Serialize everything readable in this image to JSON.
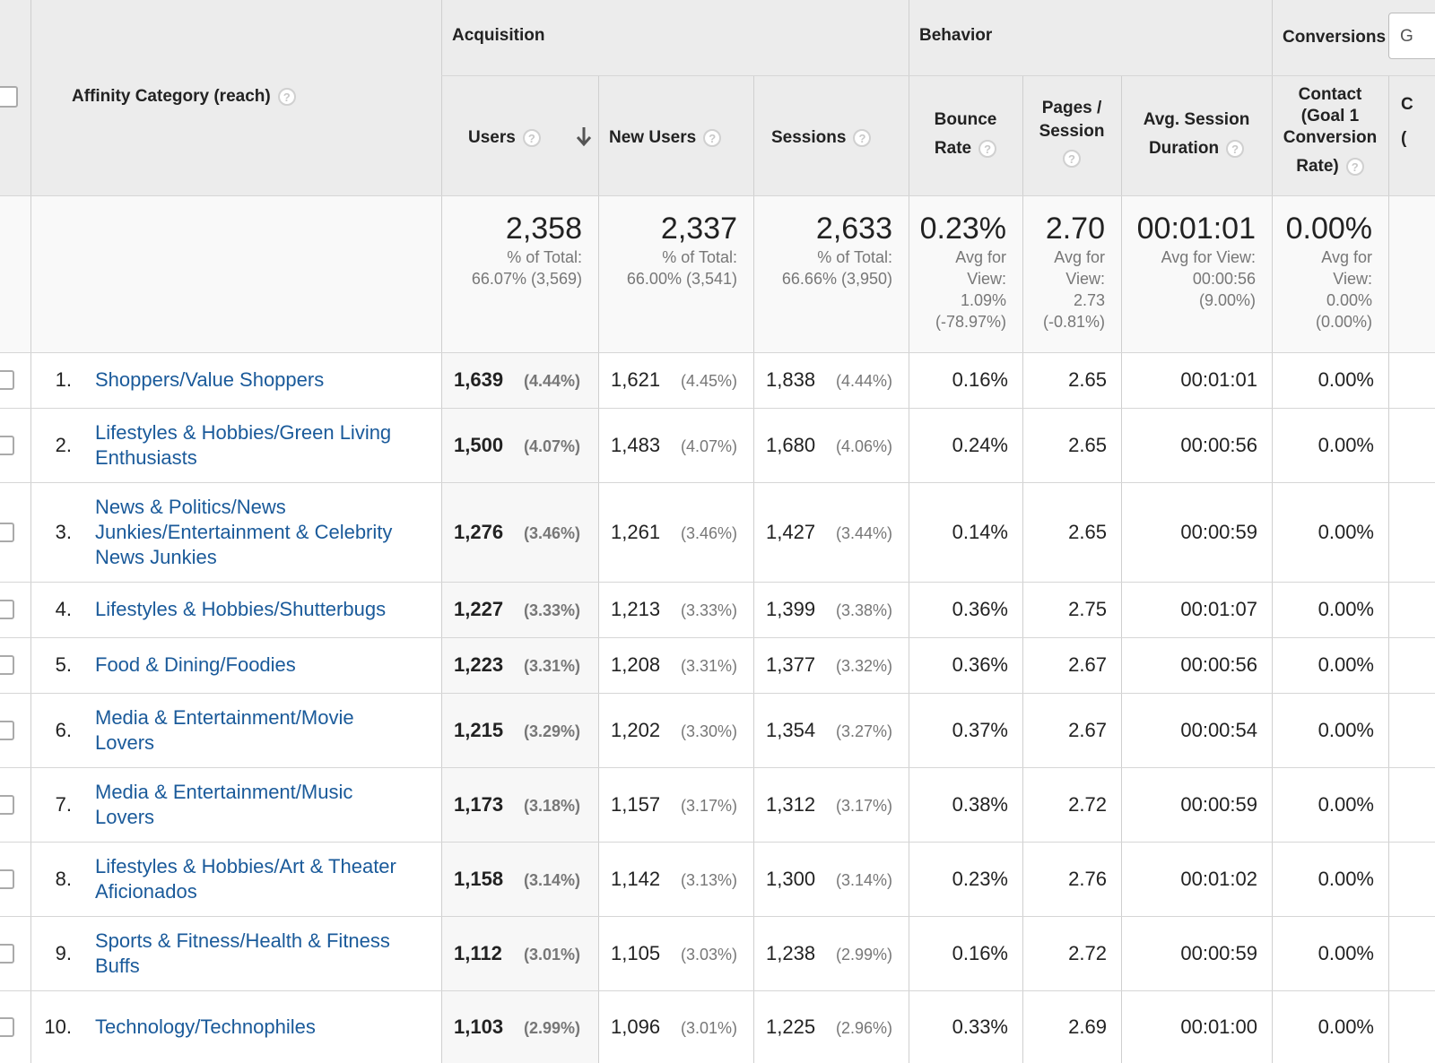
{
  "header": {
    "dimension": "Affinity Category (reach)",
    "groups": {
      "acquisition": "Acquisition",
      "behavior": "Behavior",
      "conversions": "Conversions",
      "goal_select_partial": "G"
    },
    "columns": {
      "users": "Users",
      "new_users": "New Users",
      "sessions": "Sessions",
      "bounce_line1": "Bounce",
      "bounce_line2": "Rate",
      "pages_line1": "Pages /",
      "pages_line2": "Session",
      "duration_line1": "Avg. Session",
      "duration_line2": "Duration",
      "contact_line1": "Contact",
      "contact_line2": "(Goal 1",
      "contact_line3": "Conversion",
      "contact_line4": "Rate)",
      "cut_line1": "C",
      "cut_line2": "("
    },
    "help_glyph": "?"
  },
  "totals": {
    "users": {
      "value": "2,358",
      "line1": "% of Total:",
      "line2": "66.07% (3,569)"
    },
    "new_users": {
      "value": "2,337",
      "line1": "% of Total:",
      "line2": "66.00% (3,541)"
    },
    "sessions": {
      "value": "2,633",
      "line1": "% of Total:",
      "line2": "66.66% (3,950)"
    },
    "bounce": {
      "value": "0.23%",
      "line1": "Avg for",
      "line2": "View:",
      "line3": "1.09%",
      "line4": "(-78.97%)"
    },
    "pages": {
      "value": "2.70",
      "line1": "Avg for",
      "line2": "View:",
      "line3": "2.73",
      "line4": "(-0.81%)"
    },
    "duration": {
      "value": "00:01:01",
      "line1": "Avg for View:",
      "line2": "00:00:56",
      "line3": "(9.00%)"
    },
    "conversion": {
      "value": "0.00%",
      "line1": "Avg for",
      "line2": "View:",
      "line3": "0.00%",
      "line4": "(0.00%)"
    }
  },
  "rows": [
    {
      "rank": "1.",
      "name_lines": [
        "Shoppers/Value Shoppers"
      ],
      "users": "1,639",
      "users_pct": "(4.44%)",
      "new_users": "1,621",
      "new_users_pct": "(4.45%)",
      "sessions": "1,838",
      "sessions_pct": "(4.44%)",
      "bounce": "0.16%",
      "pages": "2.65",
      "duration": "00:01:01",
      "conversion": "0.00%"
    },
    {
      "rank": "2.",
      "name_lines": [
        "Lifestyles & Hobbies/Green Living",
        "Enthusiasts"
      ],
      "users": "1,500",
      "users_pct": "(4.07%)",
      "new_users": "1,483",
      "new_users_pct": "(4.07%)",
      "sessions": "1,680",
      "sessions_pct": "(4.06%)",
      "bounce": "0.24%",
      "pages": "2.65",
      "duration": "00:00:56",
      "conversion": "0.00%"
    },
    {
      "rank": "3.",
      "name_lines": [
        "News & Politics/News",
        "Junkies/Entertainment & Celebrity",
        "News Junkies"
      ],
      "users": "1,276",
      "users_pct": "(3.46%)",
      "new_users": "1,261",
      "new_users_pct": "(3.46%)",
      "sessions": "1,427",
      "sessions_pct": "(3.44%)",
      "bounce": "0.14%",
      "pages": "2.65",
      "duration": "00:00:59",
      "conversion": "0.00%"
    },
    {
      "rank": "4.",
      "name_lines": [
        "Lifestyles & Hobbies/Shutterbugs"
      ],
      "users": "1,227",
      "users_pct": "(3.33%)",
      "new_users": "1,213",
      "new_users_pct": "(3.33%)",
      "sessions": "1,399",
      "sessions_pct": "(3.38%)",
      "bounce": "0.36%",
      "pages": "2.75",
      "duration": "00:01:07",
      "conversion": "0.00%"
    },
    {
      "rank": "5.",
      "name_lines": [
        "Food & Dining/Foodies"
      ],
      "users": "1,223",
      "users_pct": "(3.31%)",
      "new_users": "1,208",
      "new_users_pct": "(3.31%)",
      "sessions": "1,377",
      "sessions_pct": "(3.32%)",
      "bounce": "0.36%",
      "pages": "2.67",
      "duration": "00:00:56",
      "conversion": "0.00%"
    },
    {
      "rank": "6.",
      "name_lines": [
        "Media & Entertainment/Movie",
        "Lovers"
      ],
      "users": "1,215",
      "users_pct": "(3.29%)",
      "new_users": "1,202",
      "new_users_pct": "(3.30%)",
      "sessions": "1,354",
      "sessions_pct": "(3.27%)",
      "bounce": "0.37%",
      "pages": "2.67",
      "duration": "00:00:54",
      "conversion": "0.00%"
    },
    {
      "rank": "7.",
      "name_lines": [
        "Media & Entertainment/Music",
        "Lovers"
      ],
      "users": "1,173",
      "users_pct": "(3.18%)",
      "new_users": "1,157",
      "new_users_pct": "(3.17%)",
      "sessions": "1,312",
      "sessions_pct": "(3.17%)",
      "bounce": "0.38%",
      "pages": "2.72",
      "duration": "00:00:59",
      "conversion": "0.00%"
    },
    {
      "rank": "8.",
      "name_lines": [
        "Lifestyles & Hobbies/Art & Theater",
        "Aficionados"
      ],
      "users": "1,158",
      "users_pct": "(3.14%)",
      "new_users": "1,142",
      "new_users_pct": "(3.13%)",
      "sessions": "1,300",
      "sessions_pct": "(3.14%)",
      "bounce": "0.23%",
      "pages": "2.76",
      "duration": "00:01:02",
      "conversion": "0.00%"
    },
    {
      "rank": "9.",
      "name_lines": [
        "Sports & Fitness/Health & Fitness",
        "Buffs"
      ],
      "users": "1,112",
      "users_pct": "(3.01%)",
      "new_users": "1,105",
      "new_users_pct": "(3.03%)",
      "sessions": "1,238",
      "sessions_pct": "(2.99%)",
      "bounce": "0.16%",
      "pages": "2.72",
      "duration": "00:00:59",
      "conversion": "0.00%"
    },
    {
      "rank": "10.",
      "name_lines": [
        "Technology/Technophiles"
      ],
      "users": "1,103",
      "users_pct": "(2.99%)",
      "new_users": "1,096",
      "new_users_pct": "(3.01%)",
      "sessions": "1,225",
      "sessions_pct": "(2.96%)",
      "bounce": "0.33%",
      "pages": "2.69",
      "duration": "00:01:00",
      "conversion": "0.00%"
    }
  ],
  "colors": {
    "link": "#1a5a9a",
    "header_bg": "#ececec",
    "muted": "#777777"
  }
}
